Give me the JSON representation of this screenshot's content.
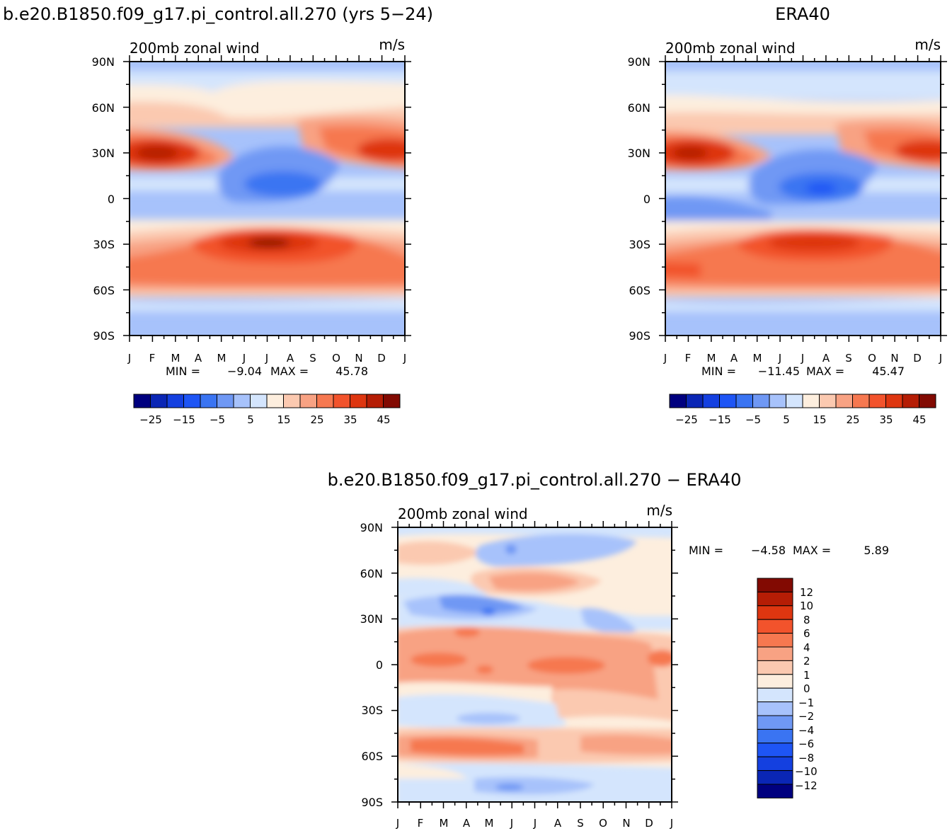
{
  "chart_data": [
    {
      "type": "heatmap",
      "title": "b.e20.B1850.f09_g17.pi_control.all.270 (yrs 5-24)",
      "subtitle_left": "200mb zonal wind",
      "subtitle_right": "m/s",
      "x_ticks": [
        "J",
        "F",
        "M",
        "A",
        "M",
        "J",
        "J",
        "A",
        "S",
        "O",
        "N",
        "D",
        "J"
      ],
      "y_ticks": [
        "90N",
        "60N",
        "30N",
        "0",
        "30S",
        "60S",
        "90S"
      ],
      "min_label": "MIN =",
      "min_value": "-9.04",
      "max_label": "MAX =",
      "max_value": "45.78",
      "colorbar_labels": [
        "-25",
        "-15",
        "-5",
        "5",
        "15",
        "25",
        "35",
        "45"
      ],
      "colors": [
        "#00007f",
        "#0a26b5",
        "#1440e0",
        "#1e55f5",
        "#3a74f2",
        "#6f98f4",
        "#a7c2fb",
        "#d4e5fd",
        "#fdeede",
        "#fbc9b0",
        "#f8a283",
        "#f67850",
        "#f2532c",
        "#de3610",
        "#b51d05",
        "#820a02"
      ]
    },
    {
      "type": "heatmap",
      "title": "ERA40",
      "subtitle_left": "200mb zonal wind",
      "subtitle_right": "m/s",
      "x_ticks": [
        "J",
        "F",
        "M",
        "A",
        "M",
        "J",
        "J",
        "A",
        "S",
        "O",
        "N",
        "D",
        "J"
      ],
      "y_ticks": [
        "90N",
        "60N",
        "30N",
        "0",
        "30S",
        "60S",
        "90S"
      ],
      "min_label": "MIN =",
      "min_value": "-11.45",
      "max_label": "MAX =",
      "max_value": "45.47",
      "colorbar_labels": [
        "-25",
        "-15",
        "-5",
        "5",
        "15",
        "25",
        "35",
        "45"
      ],
      "colors": [
        "#00007f",
        "#0a26b5",
        "#1440e0",
        "#1e55f5",
        "#3a74f2",
        "#6f98f4",
        "#a7c2fb",
        "#d4e5fd",
        "#fdeede",
        "#fbc9b0",
        "#f8a283",
        "#f67850",
        "#f2532c",
        "#de3610",
        "#b51d05",
        "#820a02"
      ]
    },
    {
      "type": "heatmap",
      "title": "b.e20.B1850.f09_g17.pi_control.all.270 - ERA40",
      "subtitle_left": "200mb zonal wind",
      "subtitle_right": "m/s",
      "x_ticks": [
        "J",
        "F",
        "M",
        "A",
        "M",
        "J",
        "J",
        "A",
        "S",
        "O",
        "N",
        "D",
        "J"
      ],
      "y_ticks": [
        "90N",
        "60N",
        "30N",
        "0",
        "30S",
        "60S",
        "90S"
      ],
      "min_label": "MIN =",
      "min_value": "-4.58",
      "max_label": "MAX =",
      "max_value": "5.89",
      "colorbar_labels": [
        "12",
        "10",
        "8",
        "6",
        "4",
        "2",
        "1",
        "0",
        "-1",
        "-2",
        "-4",
        "-6",
        "-8",
        "-10",
        "-12"
      ],
      "colors": [
        "#820a02",
        "#b51d05",
        "#de3610",
        "#f2532c",
        "#f67850",
        "#f8a283",
        "#fbc9b0",
        "#fdeede",
        "#d4e5fd",
        "#a7c2fb",
        "#6f98f4",
        "#3a74f2",
        "#1e55f5",
        "#1440e0",
        "#0a26b5",
        "#00007f"
      ]
    }
  ]
}
